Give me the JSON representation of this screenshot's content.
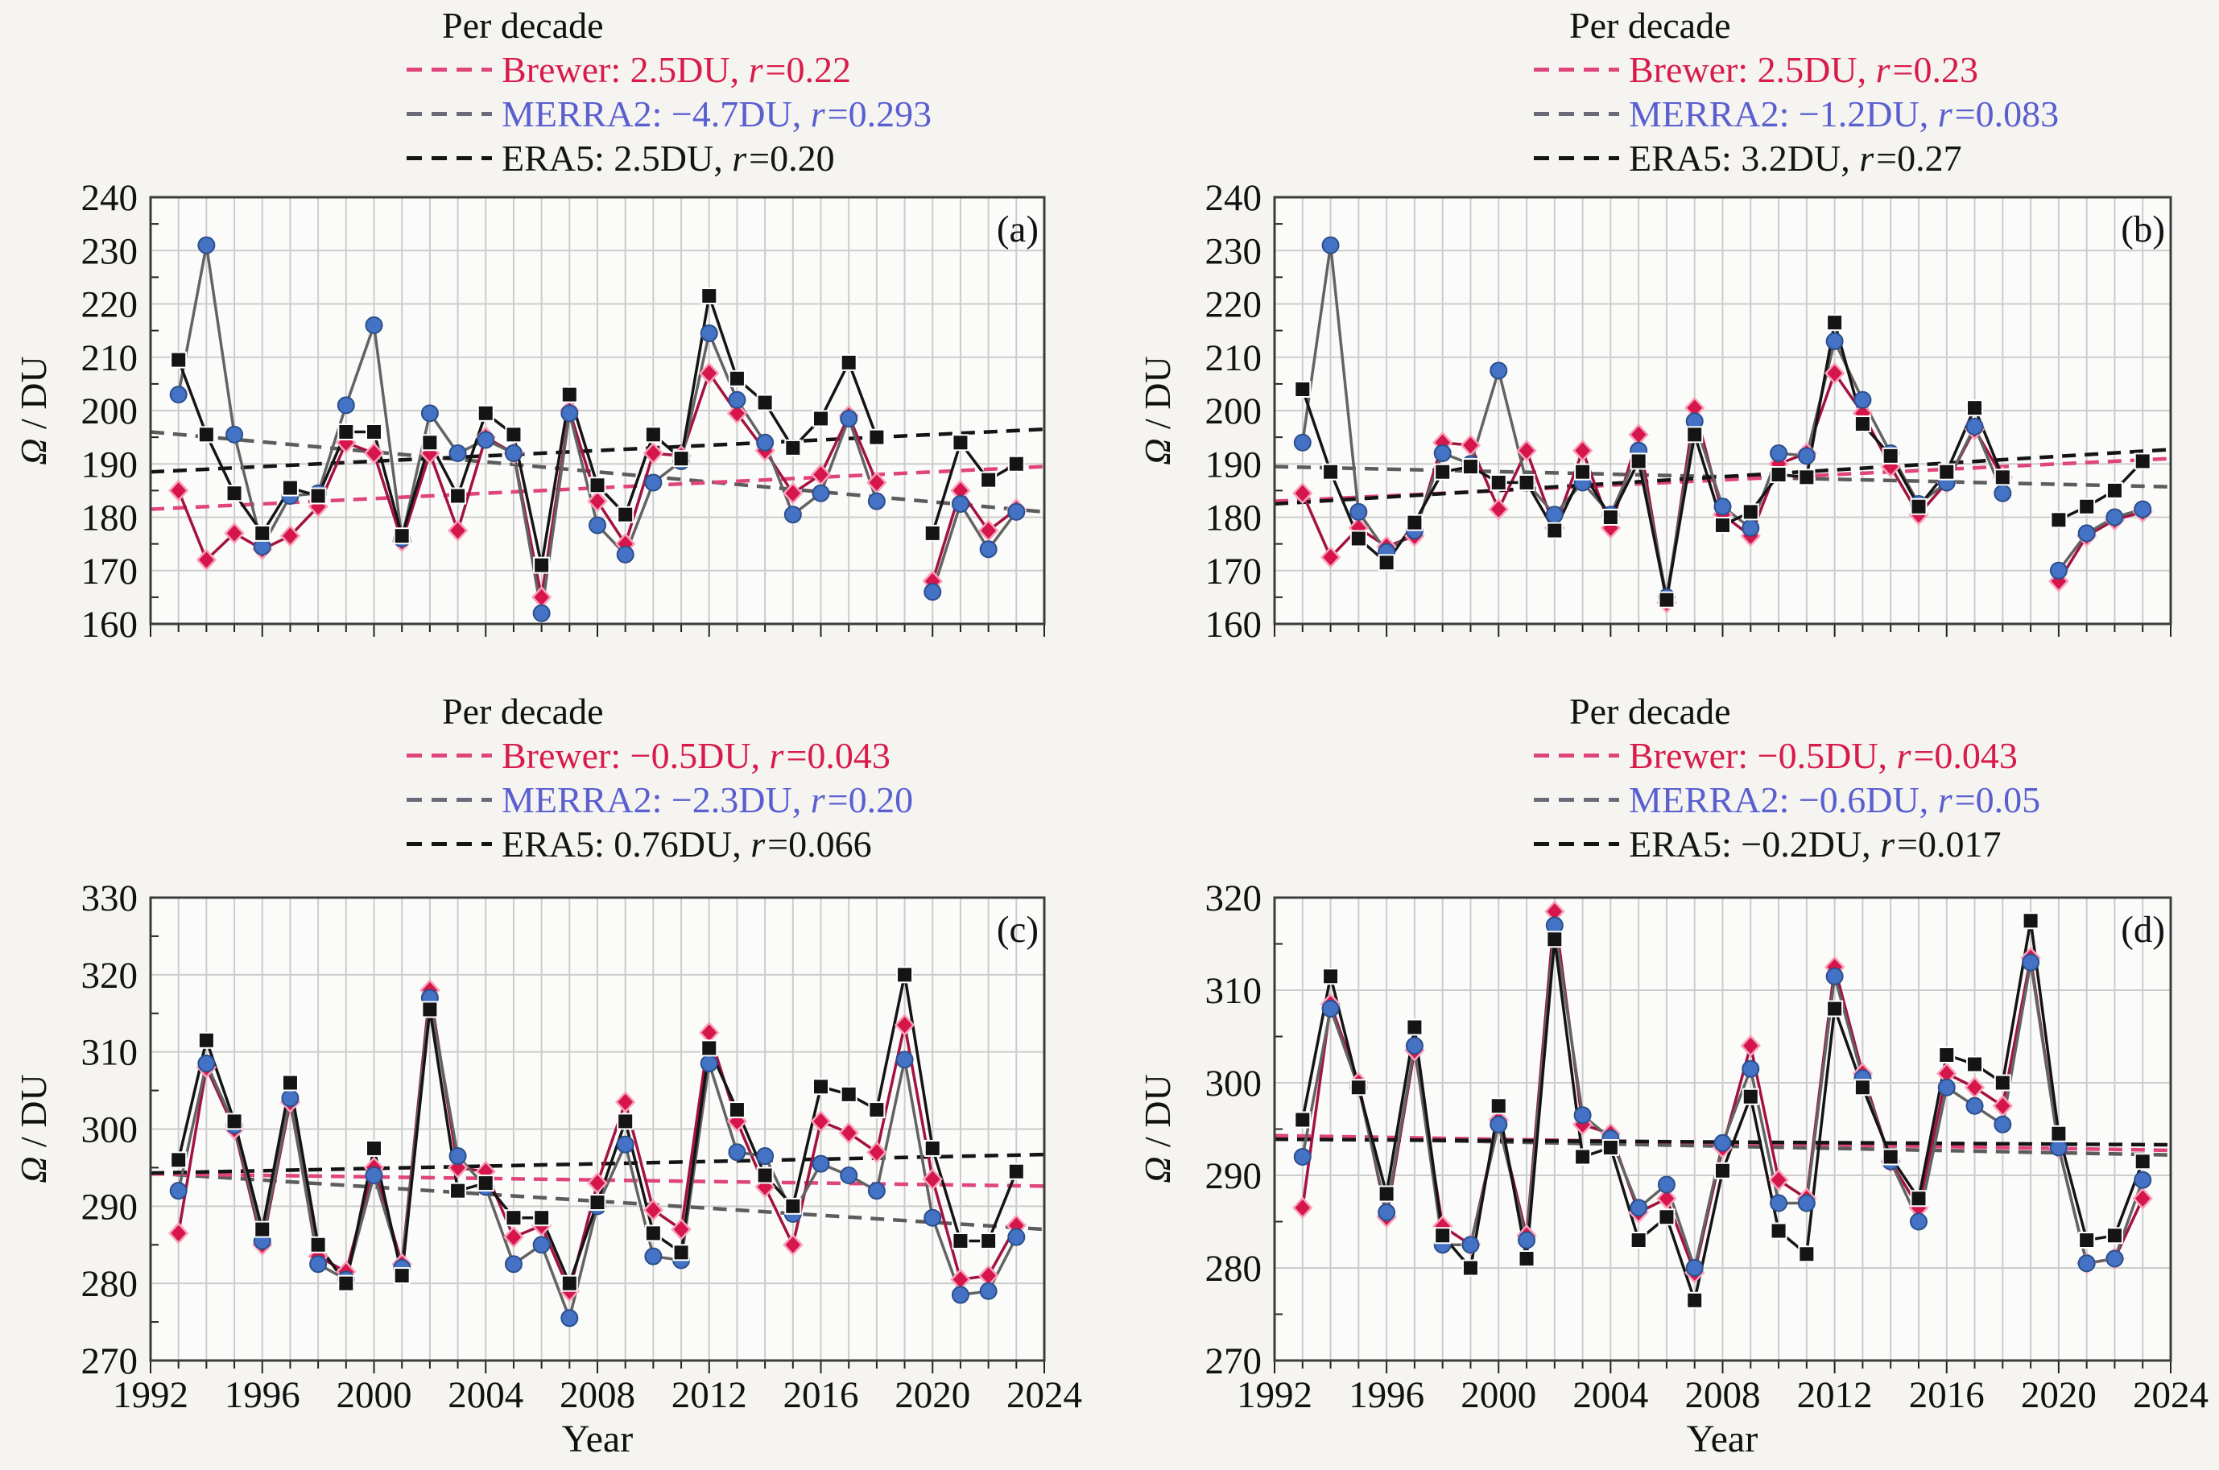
{
  "figure": {
    "x_axis_title": "Year",
    "y_axis_symbol": "Ω",
    "y_axis_unit": " / DU"
  },
  "colors": {
    "page_bg": "#f5f4f1",
    "plot_bg": "#fbfbf9",
    "grid": "#cccccc",
    "border": "#3c3c3c",
    "tick": "#222222",
    "brewer_marker": "#d6164a",
    "brewer_line": "#a31240",
    "brewer_halo": "#f6a2bc",
    "brewer_trend": "#e0447c",
    "brewer_text": "#d81b4a",
    "merra2_marker": "#4472c4",
    "merra2_edge": "#2c4f8c",
    "merra2_line": "#636363",
    "merra2_trend": "#5c5c5c",
    "merra2_text": "#5a5fd0",
    "era5_color": "#141414",
    "label_color": "#111111"
  },
  "x_tick_labels": [
    "1992",
    "1996",
    "2000",
    "2004",
    "2008",
    "2012",
    "2016",
    "2020",
    "2024"
  ],
  "chart_data": [
    {
      "id": "a",
      "tag": "(a)",
      "type": "line",
      "xlim": [
        1992,
        2024
      ],
      "ylim": [
        160,
        240
      ],
      "ytick_step": 10,
      "ytick_labels": [
        "240",
        "230",
        "220",
        "210",
        "200",
        "190",
        "180",
        "170",
        "160"
      ],
      "grid": true,
      "legend_position": "top",
      "legend_title": "Per decade",
      "legend": [
        {
          "series": "Brewer",
          "text": "Brewer: 2.5DU, ",
          "r_symbol": "r",
          "r_value": "=0.22"
        },
        {
          "series": "MERRA2",
          "text": "MERRA2: −4.7DU, ",
          "r_symbol": "r",
          "r_value": "=0.293"
        },
        {
          "series": "ERA5",
          "text": "ERA5: 2.5DU, ",
          "r_symbol": "r",
          "r_value": "=0.20"
        }
      ],
      "years": [
        1993,
        1994,
        1995,
        1996,
        1997,
        1998,
        1999,
        2000,
        2001,
        2002,
        2003,
        2004,
        2005,
        2006,
        2007,
        2008,
        2009,
        2010,
        2011,
        2012,
        2013,
        2014,
        2015,
        2016,
        2017,
        2018,
        2019,
        2020,
        2021,
        2022,
        2023
      ],
      "series": [
        {
          "name": "Brewer",
          "values": [
            185,
            172,
            177,
            174,
            176.5,
            182,
            194,
            192,
            175.5,
            192,
            177.5,
            195,
            192,
            165,
            200,
            183,
            175,
            192,
            191.5,
            207,
            199.5,
            192.5,
            184.5,
            188,
            199,
            186.5,
            null,
            168,
            185,
            177.5,
            181.5
          ]
        },
        {
          "name": "MERRA2",
          "values": [
            203,
            231,
            195.5,
            174.5,
            184,
            184.5,
            201,
            216,
            176,
            199.5,
            192,
            194.5,
            192,
            162,
            199.5,
            178.5,
            173,
            186.5,
            190.5,
            214.5,
            202,
            194,
            180.5,
            184.5,
            198.5,
            183,
            null,
            166,
            182.5,
            174,
            181
          ]
        },
        {
          "name": "ERA5",
          "values": [
            209.5,
            195.5,
            184.5,
            177,
            185.5,
            184,
            196,
            196,
            176.5,
            194,
            184,
            199.5,
            195.5,
            171,
            203,
            186,
            180.5,
            195.5,
            191,
            221.5,
            206,
            201.5,
            193,
            198.5,
            209,
            195,
            null,
            177,
            194,
            187,
            190
          ]
        }
      ],
      "trends": [
        {
          "name": "MERRA2",
          "start": 196,
          "end": 181
        },
        {
          "name": "Brewer",
          "start": 181.5,
          "end": 189.5
        },
        {
          "name": "ERA5",
          "start": 188.5,
          "end": 196.5
        }
      ]
    },
    {
      "id": "b",
      "tag": "(b)",
      "type": "line",
      "xlim": [
        1992,
        2024
      ],
      "ylim": [
        160,
        240
      ],
      "ytick_step": 10,
      "ytick_labels": [
        "240",
        "230",
        "220",
        "210",
        "200",
        "190",
        "180",
        "170",
        "160"
      ],
      "grid": true,
      "legend_position": "top",
      "legend_title": "Per decade",
      "legend": [
        {
          "series": "Brewer",
          "text": "Brewer: 2.5DU, ",
          "r_symbol": "r",
          "r_value": "=0.23"
        },
        {
          "series": "MERRA2",
          "text": "MERRA2: −1.2DU, ",
          "r_symbol": "r",
          "r_value": "=0.083"
        },
        {
          "series": "ERA5",
          "text": "ERA5: 3.2DU, ",
          "r_symbol": "r",
          "r_value": "=0.27"
        }
      ],
      "years": [
        1993,
        1994,
        1995,
        1996,
        1997,
        1998,
        1999,
        2000,
        2001,
        2002,
        2003,
        2004,
        2005,
        2006,
        2007,
        2008,
        2009,
        2010,
        2011,
        2012,
        2013,
        2014,
        2015,
        2016,
        2017,
        2018,
        2019,
        2020,
        2021,
        2022,
        2023
      ],
      "series": [
        {
          "name": "Brewer",
          "values": [
            184.5,
            172.5,
            178,
            174.5,
            176.5,
            194,
            193.5,
            181.5,
            192.5,
            178,
            192.5,
            178,
            195.5,
            164,
            200.5,
            180.5,
            176.5,
            190,
            192,
            207,
            199.5,
            189.5,
            180.5,
            186.5,
            196.5,
            187.5,
            null,
            168,
            176.5,
            179.5,
            181
          ]
        },
        {
          "name": "MERRA2",
          "values": [
            194,
            231,
            181,
            173.5,
            177.5,
            192,
            190,
            207.5,
            186.5,
            180.5,
            186.5,
            180.5,
            192.5,
            165,
            198,
            182,
            178,
            192,
            191.5,
            213,
            202,
            192,
            182.5,
            186.5,
            197,
            184.5,
            null,
            170,
            177,
            180,
            181.5
          ]
        },
        {
          "name": "ERA5",
          "values": [
            204,
            188.5,
            176,
            171.5,
            179,
            188.5,
            189.5,
            186.5,
            186.5,
            177.5,
            188.5,
            180,
            190.5,
            164.5,
            195.5,
            178.5,
            181,
            188,
            187.5,
            216.5,
            197.5,
            191.5,
            182,
            188.5,
            200.5,
            187.5,
            null,
            179.5,
            182,
            185,
            190.5
          ]
        }
      ],
      "trends": [
        {
          "name": "MERRA2",
          "start": 189.5,
          "end": 185.7
        },
        {
          "name": "Brewer",
          "start": 183,
          "end": 191
        },
        {
          "name": "ERA5",
          "start": 182.5,
          "end": 192.7
        }
      ]
    },
    {
      "id": "c",
      "tag": "(c)",
      "type": "line",
      "xlim": [
        1992,
        2024
      ],
      "ylim": [
        270,
        330
      ],
      "ytick_step": 10,
      "ytick_labels": [
        "330",
        "320",
        "310",
        "300",
        "290",
        "280",
        "270"
      ],
      "grid": true,
      "legend_position": "top",
      "legend_title": "Per decade",
      "legend": [
        {
          "series": "Brewer",
          "text": "Brewer: −0.5DU, ",
          "r_symbol": "r",
          "r_value": "=0.043"
        },
        {
          "series": "MERRA2",
          "text": "MERRA2: −2.3DU, ",
          "r_symbol": "r",
          "r_value": "=0.20"
        },
        {
          "series": "ERA5",
          "text": "ERA5: 0.76DU, ",
          "r_symbol": "r",
          "r_value": "=0.066"
        }
      ],
      "years": [
        1993,
        1994,
        1995,
        1996,
        1997,
        1998,
        1999,
        2000,
        2001,
        2002,
        2003,
        2004,
        2005,
        2006,
        2007,
        2008,
        2009,
        2010,
        2011,
        2012,
        2013,
        2014,
        2015,
        2016,
        2017,
        2018,
        2019,
        2020,
        2021,
        2022,
        2023
      ],
      "series": [
        {
          "name": "Brewer",
          "values": [
            286.5,
            308,
            300,
            285,
            303.5,
            283.5,
            281.5,
            295,
            282.5,
            318,
            295,
            294.5,
            286,
            287.5,
            279,
            293,
            303.5,
            289.5,
            287,
            312.5,
            301,
            292.5,
            285,
            301,
            299.5,
            297,
            313.5,
            293.5,
            280.5,
            281,
            287.5
          ]
        },
        {
          "name": "MERRA2",
          "values": [
            292,
            308.5,
            300.5,
            285.5,
            304,
            282.5,
            280.5,
            294,
            282,
            317,
            296.5,
            292.5,
            282.5,
            285,
            275.5,
            290,
            298,
            283.5,
            283,
            308.5,
            297,
            296.5,
            289,
            295.5,
            294,
            292,
            309,
            288.5,
            278.5,
            279,
            286
          ]
        },
        {
          "name": "ERA5",
          "values": [
            296,
            311.5,
            301,
            287,
            306,
            285,
            280,
            297.5,
            281,
            315.5,
            292,
            293,
            288.5,
            288.5,
            280,
            290.5,
            301,
            286.5,
            284,
            310.5,
            302.5,
            294,
            290,
            305.5,
            304.5,
            302.5,
            320,
            297.5,
            285.5,
            285.5,
            294.5
          ]
        }
      ],
      "trends": [
        {
          "name": "MERRA2",
          "start": 294.3,
          "end": 287
        },
        {
          "name": "Brewer",
          "start": 294.2,
          "end": 292.6
        },
        {
          "name": "ERA5",
          "start": 294.3,
          "end": 296.7
        }
      ]
    },
    {
      "id": "d",
      "tag": "(d)",
      "type": "line",
      "xlim": [
        1992,
        2024
      ],
      "ylim": [
        270,
        320
      ],
      "ytick_step": 10,
      "ytick_labels": [
        "320",
        "310",
        "300",
        "290",
        "280",
        "270"
      ],
      "grid": true,
      "legend_position": "top",
      "legend_title": "Per decade",
      "legend": [
        {
          "series": "Brewer",
          "text": "Brewer: −0.5DU, ",
          "r_symbol": "r",
          "r_value": "=0.043"
        },
        {
          "series": "MERRA2",
          "text": "MERRA2: −0.6DU, ",
          "r_symbol": "r",
          "r_value": "=0.05"
        },
        {
          "series": "ERA5",
          "text": "ERA5: −0.2DU, ",
          "r_symbol": "r",
          "r_value": "=0.017"
        }
      ],
      "years": [
        1993,
        1994,
        1995,
        1996,
        1997,
        1998,
        1999,
        2000,
        2001,
        2002,
        2003,
        2004,
        2005,
        2006,
        2007,
        2008,
        2009,
        2010,
        2011,
        2012,
        2013,
        2014,
        2015,
        2016,
        2017,
        2018,
        2019,
        2020,
        2021,
        2022,
        2023
      ],
      "series": [
        {
          "name": "Brewer",
          "values": [
            286.5,
            308.5,
            300,
            285.5,
            303.5,
            284.5,
            282.5,
            296,
            283.5,
            318.5,
            295.5,
            294.5,
            286,
            287.5,
            279.5,
            293,
            304,
            289.5,
            287.5,
            312.5,
            301,
            291.5,
            286.5,
            301,
            299.5,
            297.5,
            313.5,
            293,
            280.5,
            281,
            287.5
          ]
        },
        {
          "name": "MERRA2",
          "values": [
            292,
            308,
            299.5,
            286,
            304,
            282.5,
            282.5,
            295.5,
            283,
            317,
            296.5,
            294,
            286.5,
            289,
            280,
            293.5,
            301.5,
            287,
            287,
            311.5,
            300.5,
            291.5,
            285,
            299.5,
            297.5,
            295.5,
            313,
            293,
            280.5,
            281,
            289.5
          ]
        },
        {
          "name": "ERA5",
          "values": [
            296,
            311.5,
            299.5,
            288,
            306,
            283.5,
            280,
            297.5,
            281,
            315.5,
            292,
            293,
            283,
            285.5,
            276.5,
            290.5,
            298.5,
            284,
            281.5,
            308,
            299.5,
            292,
            287.5,
            303,
            302,
            300,
            317.5,
            294.5,
            283,
            283.5,
            291.5
          ]
        }
      ],
      "trends": [
        {
          "name": "MERRA2",
          "start": 294.1,
          "end": 292.2
        },
        {
          "name": "Brewer",
          "start": 294.3,
          "end": 292.7
        },
        {
          "name": "ERA5",
          "start": 293.9,
          "end": 293.3
        }
      ]
    }
  ]
}
